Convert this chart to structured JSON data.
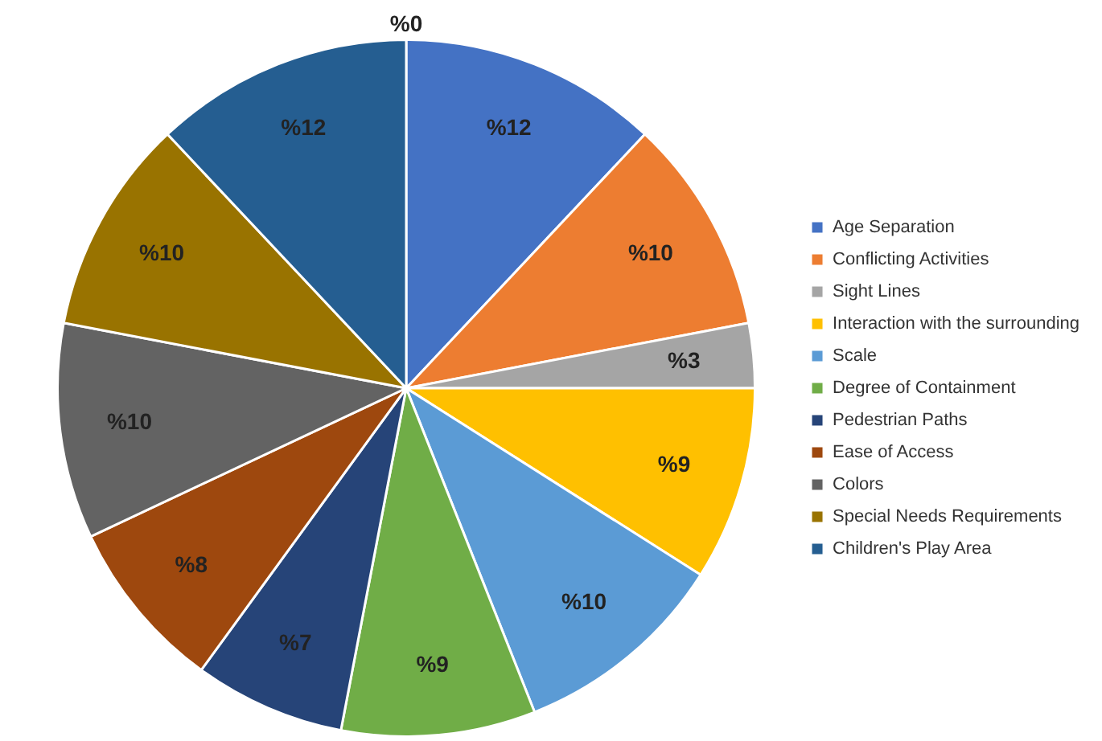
{
  "chart_data": {
    "type": "pie",
    "categories": [
      "Age Separation",
      "Conflicting Activities",
      "Sight Lines",
      "Interaction with the surrounding",
      "Scale",
      "Degree of Containment",
      "Pedestrian Paths",
      "Ease of Access",
      "Colors",
      "Special Needs Requirements",
      "Children's Play Area"
    ],
    "values": [
      12,
      10,
      3,
      9,
      10,
      9,
      7,
      8,
      10,
      10,
      12
    ],
    "colors": [
      "#4472c4",
      "#ed7d31",
      "#a5a5a5",
      "#ffc000",
      "#5b9bd5",
      "#70ad47",
      "#264478",
      "#9e480e",
      "#636363",
      "#997300",
      "#255e91"
    ],
    "value_labels": [
      "%12",
      "%10",
      "%3",
      "%9",
      "%10",
      "%9",
      "%7",
      "%8",
      "%10",
      "%10",
      "%12"
    ],
    "annotations": [
      "%0"
    ],
    "legend": "right"
  }
}
